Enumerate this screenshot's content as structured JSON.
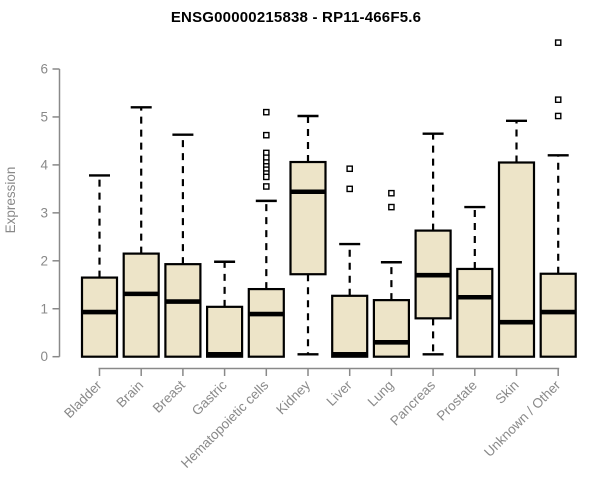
{
  "page": {
    "title": "ENSG00000215838 - RP11-466F5.6"
  },
  "chart_data": {
    "type": "boxplot",
    "title": "ENSG00000215838 - RP11-466F5.6",
    "xlabel": "",
    "ylabel": "Expression",
    "ylim": [
      0,
      6.6
    ],
    "yticks": [
      0,
      1,
      2,
      3,
      4,
      5,
      6
    ],
    "grid": false,
    "legend": false,
    "categories": [
      "Bladder",
      "Brain",
      "Breast",
      "Gastric",
      "Hematopoietic cells",
      "Kidney",
      "Liver",
      "Lung",
      "Pancreas",
      "Prostate",
      "Skin",
      "Unknown / Other"
    ],
    "series": [
      {
        "category": "Bladder",
        "whisker_low": 0,
        "q1": 0,
        "median": 0.93,
        "q3": 1.65,
        "whisker_high": 3.78,
        "outliers": []
      },
      {
        "category": "Brain",
        "whisker_low": 0,
        "q1": 0,
        "median": 1.31,
        "q3": 2.15,
        "whisker_high": 5.2,
        "outliers": []
      },
      {
        "category": "Breast",
        "whisker_low": 0,
        "q1": 0,
        "median": 1.15,
        "q3": 1.93,
        "whisker_high": 4.63,
        "outliers": []
      },
      {
        "category": "Gastric",
        "whisker_low": 0,
        "q1": 0,
        "median": 0.05,
        "q3": 1.04,
        "whisker_high": 1.98,
        "outliers": []
      },
      {
        "category": "Hematopoietic cells",
        "whisker_low": 0,
        "q1": 0,
        "median": 0.89,
        "q3": 1.41,
        "whisker_high": 3.25,
        "outliers": [
          5.1,
          4.62,
          4.25,
          4.15,
          4.05,
          3.97,
          3.9,
          3.82,
          3.75,
          3.55
        ]
      },
      {
        "category": "Kidney",
        "whisker_low": 0.05,
        "q1": 1.72,
        "median": 3.44,
        "q3": 4.06,
        "whisker_high": 5.02,
        "outliers": []
      },
      {
        "category": "Liver",
        "whisker_low": 0,
        "q1": 0,
        "median": 0.05,
        "q3": 1.27,
        "whisker_high": 2.35,
        "outliers": [
          3.92,
          3.5
        ]
      },
      {
        "category": "Lung",
        "whisker_low": 0,
        "q1": 0,
        "median": 0.3,
        "q3": 1.18,
        "whisker_high": 1.97,
        "outliers": [
          3.41,
          3.12
        ]
      },
      {
        "category": "Pancreas",
        "whisker_low": 0.05,
        "q1": 0.8,
        "median": 1.7,
        "q3": 2.63,
        "whisker_high": 4.65,
        "outliers": []
      },
      {
        "category": "Prostate",
        "whisker_low": 0,
        "q1": 0,
        "median": 1.24,
        "q3": 1.83,
        "whisker_high": 3.12,
        "outliers": []
      },
      {
        "category": "Skin",
        "whisker_low": 0,
        "q1": 0,
        "median": 0.72,
        "q3": 4.05,
        "whisker_high": 4.92,
        "outliers": []
      },
      {
        "category": "Unknown / Other",
        "whisker_low": 0,
        "q1": 0,
        "median": 0.93,
        "q3": 1.73,
        "whisker_high": 4.2,
        "outliers": [
          6.55,
          5.36,
          5.02
        ]
      }
    ],
    "colors": {
      "box_fill": "#EDE4C8",
      "box_stroke": "#000000",
      "median": "#000000",
      "whisker": "#000000",
      "outlier_stroke": "#000000",
      "outlier_fill": "#ffffff",
      "axis": "#898989",
      "tick_label": "#898989",
      "title": "#000000",
      "background": "#ffffff"
    }
  }
}
